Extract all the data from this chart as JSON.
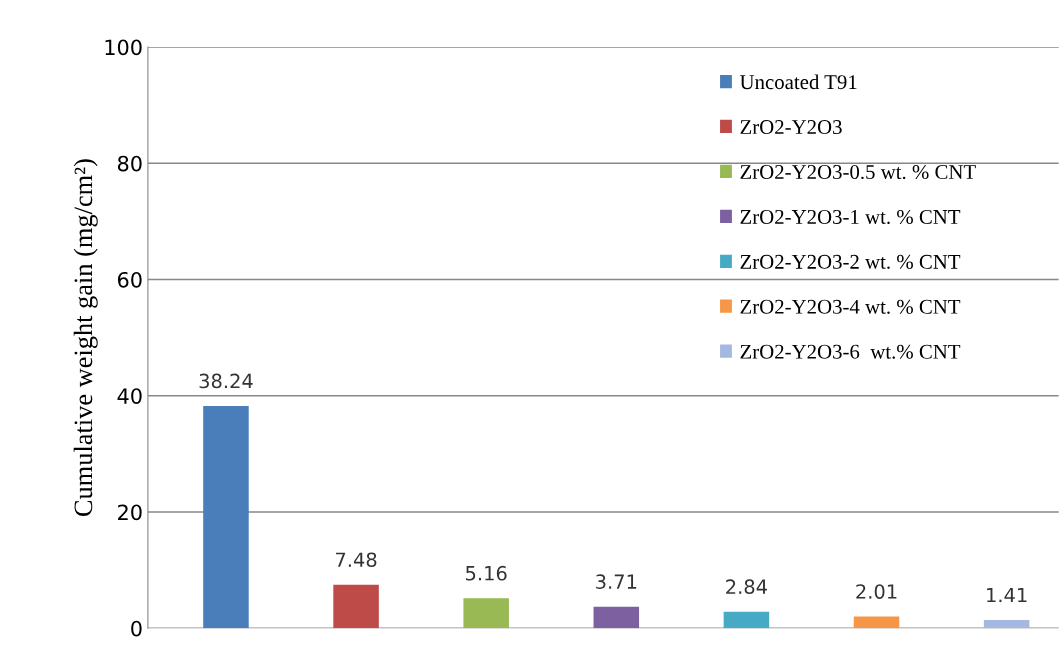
{
  "chart_data": {
    "type": "bar",
    "ylabel": "Cumulative weight gain (mg/cm²)",
    "categories": [
      null,
      null,
      null,
      null,
      null,
      null,
      null
    ],
    "series": [
      {
        "name": "Uncoated T91",
        "color": "#4a7ebb",
        "values": [
          38.24,
          null,
          null,
          null,
          null,
          null,
          null
        ]
      },
      {
        "name": "ZrO2-Y2O3",
        "color": "#be4b48",
        "values": [
          null,
          7.48,
          null,
          null,
          null,
          null,
          null
        ]
      },
      {
        "name": "ZrO2-Y2O3-0.5 wt. % CNT",
        "color": "#98b954",
        "values": [
          null,
          null,
          5.16,
          null,
          null,
          null,
          null
        ]
      },
      {
        "name": "ZrO2-Y2O3-1 wt. % CNT",
        "color": "#7d60a0",
        "values": [
          null,
          null,
          null,
          3.71,
          null,
          null,
          null
        ]
      },
      {
        "name": "ZrO2-Y2O3-2 wt. % CNT",
        "color": "#46aac5",
        "values": [
          null,
          null,
          null,
          null,
          2.84,
          null,
          null
        ]
      },
      {
        "name": "ZrO2-Y2O3-4 wt. % CNT",
        "color": "#f79646",
        "values": [
          null,
          null,
          null,
          null,
          null,
          2.01,
          null
        ]
      },
      {
        "name": "ZrO2-Y2O3-6  wt.% CNT",
        "color": "#a5b8e0",
        "values": [
          null,
          null,
          null,
          null,
          null,
          null,
          1.41
        ]
      }
    ],
    "ylim": [
      0,
      100
    ],
    "yticks": [
      0,
      20,
      40,
      60,
      80,
      100
    ],
    "grid": "y",
    "legend": "top right",
    "data_labels": true
  }
}
